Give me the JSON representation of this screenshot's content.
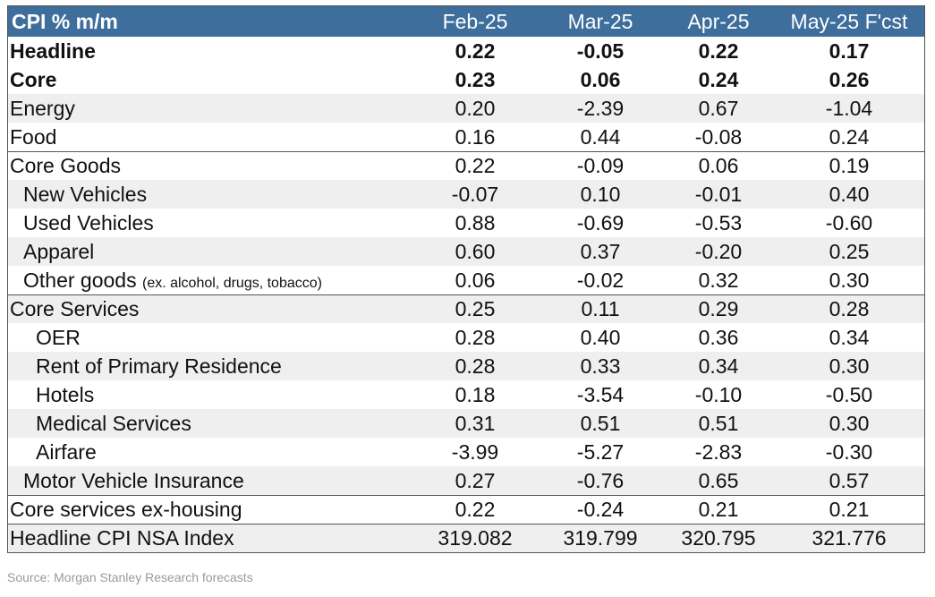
{
  "table": {
    "header": {
      "label": "CPI % m/m",
      "columns": [
        "Feb-25",
        "Mar-25",
        "Apr-25",
        "May-25 F'cst"
      ]
    },
    "rows": [
      {
        "label": "Headline",
        "values": [
          "0.22",
          "-0.05",
          "0.22",
          "0.17"
        ]
      },
      {
        "label": "Core",
        "values": [
          "0.23",
          "0.06",
          "0.24",
          "0.26"
        ]
      },
      {
        "label": "Energy",
        "values": [
          "0.20",
          "-2.39",
          "0.67",
          "-1.04"
        ]
      },
      {
        "label": "Food",
        "values": [
          "0.16",
          "0.44",
          "-0.08",
          "0.24"
        ]
      },
      {
        "label": "Core Goods",
        "values": [
          "0.22",
          "-0.09",
          "0.06",
          "0.19"
        ]
      },
      {
        "label": "New Vehicles",
        "values": [
          "-0.07",
          "0.10",
          "-0.01",
          "0.40"
        ]
      },
      {
        "label": "Used Vehicles",
        "values": [
          "0.88",
          "-0.69",
          "-0.53",
          "-0.60"
        ]
      },
      {
        "label": "Apparel",
        "values": [
          "0.60",
          "0.37",
          "-0.20",
          "0.25"
        ]
      },
      {
        "label": "Other goods",
        "note": "(ex. alcohol, drugs, tobacco)",
        "values": [
          "0.06",
          "-0.02",
          "0.32",
          "0.30"
        ]
      },
      {
        "label": "Core Services",
        "values": [
          "0.25",
          "0.11",
          "0.29",
          "0.28"
        ]
      },
      {
        "label": "OER",
        "values": [
          "0.28",
          "0.40",
          "0.36",
          "0.34"
        ]
      },
      {
        "label": "Rent of Primary Residence",
        "values": [
          "0.28",
          "0.33",
          "0.34",
          "0.30"
        ]
      },
      {
        "label": "Hotels",
        "values": [
          "0.18",
          "-3.54",
          "-0.10",
          "-0.50"
        ]
      },
      {
        "label": "Medical Services",
        "values": [
          "0.31",
          "0.51",
          "0.51",
          "0.30"
        ]
      },
      {
        "label": "Airfare",
        "values": [
          "-3.99",
          "-5.27",
          "-2.83",
          "-0.30"
        ]
      },
      {
        "label": "Motor Vehicle Insurance",
        "values": [
          "0.27",
          "-0.76",
          "0.65",
          "0.57"
        ]
      },
      {
        "label": "Core services ex-housing",
        "values": [
          "0.22",
          "-0.24",
          "0.21",
          "0.21"
        ]
      },
      {
        "label": "Headline CPI NSA Index",
        "values": [
          "319.082",
          "319.799",
          "320.795",
          "321.776"
        ]
      }
    ]
  },
  "source": "Source: Morgan Stanley Research forecasts",
  "colors": {
    "header_bg": "#3e6e9c",
    "header_text": "#ffffff",
    "alt_row": "#efefef"
  },
  "chart_data": {
    "type": "table",
    "columns": [
      "CPI % m/m",
      "Feb-25",
      "Mar-25",
      "Apr-25",
      "May-25 F'cst"
    ],
    "rows": [
      [
        "Headline",
        0.22,
        -0.05,
        0.22,
        0.17
      ],
      [
        "Core",
        0.23,
        0.06,
        0.24,
        0.26
      ],
      [
        "Energy",
        0.2,
        -2.39,
        0.67,
        -1.04
      ],
      [
        "Food",
        0.16,
        0.44,
        -0.08,
        0.24
      ],
      [
        "Core Goods",
        0.22,
        -0.09,
        0.06,
        0.19
      ],
      [
        "New Vehicles",
        -0.07,
        0.1,
        -0.01,
        0.4
      ],
      [
        "Used Vehicles",
        0.88,
        -0.69,
        -0.53,
        -0.6
      ],
      [
        "Apparel",
        0.6,
        0.37,
        -0.2,
        0.25
      ],
      [
        "Other goods (ex. alcohol, drugs, tobacco)",
        0.06,
        -0.02,
        0.32,
        0.3
      ],
      [
        "Core Services",
        0.25,
        0.11,
        0.29,
        0.28
      ],
      [
        "OER",
        0.28,
        0.4,
        0.36,
        0.34
      ],
      [
        "Rent of Primary Residence",
        0.28,
        0.33,
        0.34,
        0.3
      ],
      [
        "Hotels",
        0.18,
        -3.54,
        -0.1,
        -0.5
      ],
      [
        "Medical Services",
        0.31,
        0.51,
        0.51,
        0.3
      ],
      [
        "Airfare",
        -3.99,
        -5.27,
        -2.83,
        -0.3
      ],
      [
        "Motor Vehicle Insurance",
        0.27,
        -0.76,
        0.65,
        0.57
      ],
      [
        "Core services ex-housing",
        0.22,
        -0.24,
        0.21,
        0.21
      ],
      [
        "Headline CPI NSA Index",
        319.082,
        319.799,
        320.795,
        321.776
      ]
    ]
  }
}
